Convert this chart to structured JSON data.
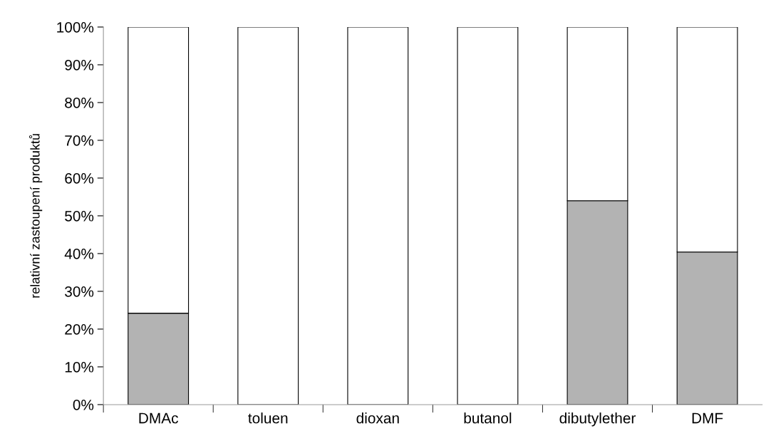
{
  "chart_data": {
    "type": "bar",
    "stacked": true,
    "ylabel": "relativní zastoupení produktů",
    "categories": [
      "DMAc",
      "toluen",
      "dioxan",
      "butanol",
      "dibutylether",
      "DMF"
    ],
    "series": [
      {
        "color": "#b3b3b3",
        "values": [
          24.2,
          0,
          0,
          0,
          54.0,
          40.4
        ]
      },
      {
        "color": "#ffffff",
        "values": [
          75.8,
          100,
          100,
          100,
          46.0,
          59.6
        ]
      }
    ],
    "ylim": [
      0,
      100
    ],
    "yticks": [
      {
        "value": 0,
        "label": "0%"
      },
      {
        "value": 10,
        "label": "10%"
      },
      {
        "value": 20,
        "label": "20%"
      },
      {
        "value": 30,
        "label": "30%"
      },
      {
        "value": 40,
        "label": "40%"
      },
      {
        "value": 50,
        "label": "50%"
      },
      {
        "value": 60,
        "label": "60%"
      },
      {
        "value": 70,
        "label": "70%"
      },
      {
        "value": 80,
        "label": "80%"
      },
      {
        "value": 90,
        "label": "90%"
      },
      {
        "value": 100,
        "label": "100%"
      }
    ],
    "grid": false,
    "legend": false
  }
}
